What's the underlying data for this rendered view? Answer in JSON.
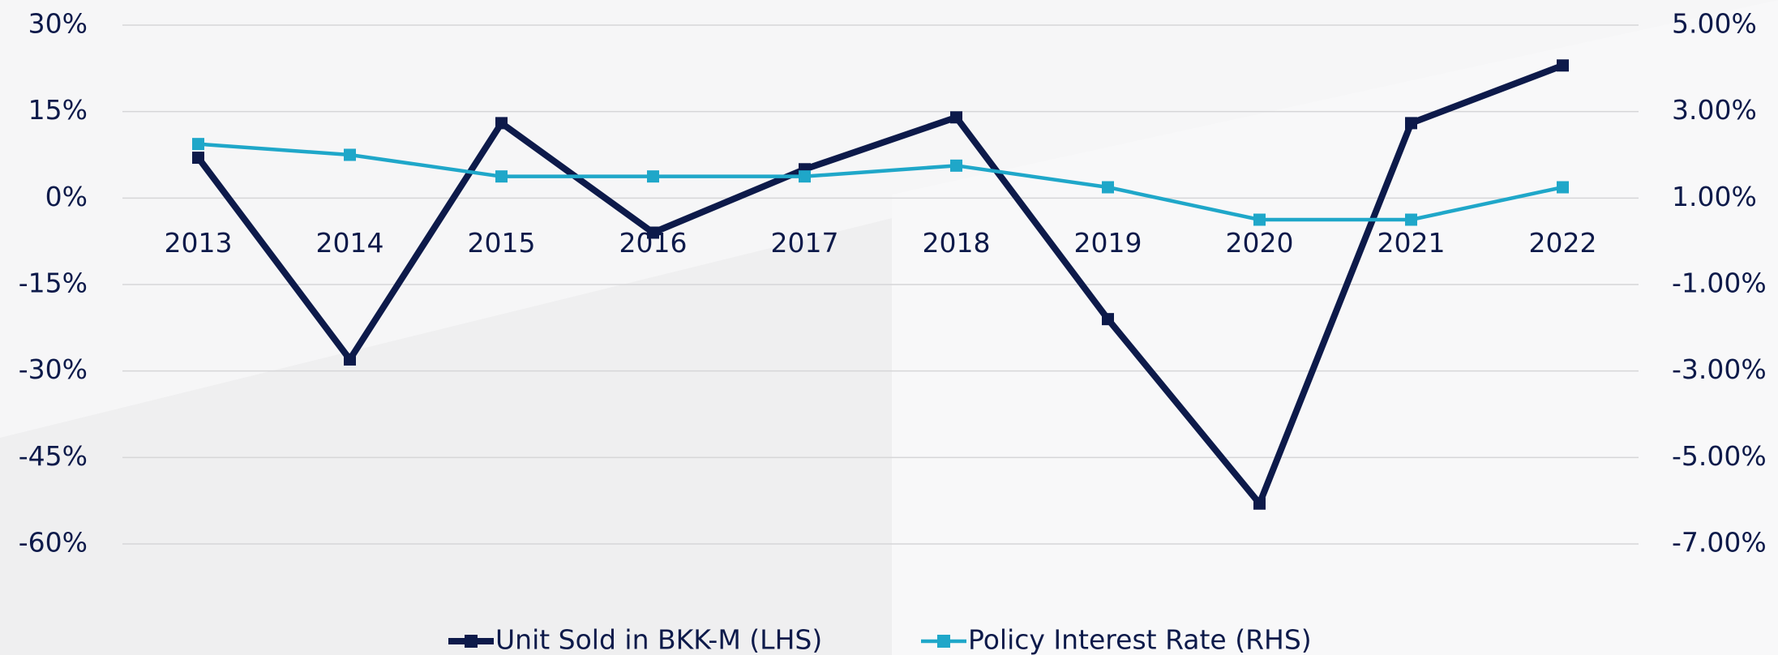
{
  "chart_data": {
    "type": "line",
    "categories": [
      "2013",
      "2014",
      "2015",
      "2016",
      "2017",
      "2018",
      "2019",
      "2020",
      "2021",
      "2022"
    ],
    "series": [
      {
        "name": "Unit Sold in BKK-M (LHS)",
        "color": "#0d1a4a",
        "values": [
          7,
          -28,
          13,
          -6,
          5,
          14,
          -21,
          -53,
          13,
          23
        ]
      },
      {
        "name": "Policy Interest Rate (RHS)",
        "color": "#1fa7c9",
        "axis": "y2",
        "values": [
          2.25,
          2.0,
          1.5,
          1.5,
          1.5,
          1.75,
          1.25,
          0.5,
          0.5,
          1.25
        ]
      }
    ],
    "ylim": [
      -60,
      30
    ],
    "yticks": [
      {
        "value": 30,
        "label": "30%"
      },
      {
        "value": 15,
        "label": "15%"
      },
      {
        "value": 0,
        "label": "0%"
      },
      {
        "value": -15,
        "label": "-15%"
      },
      {
        "value": -30,
        "label": "-30%"
      },
      {
        "value": -45,
        "label": "-45%"
      },
      {
        "value": -60,
        "label": "-60%"
      }
    ],
    "y2lim": [
      -7,
      5
    ],
    "y2ticks": [
      {
        "value": 5,
        "label": "5.00%"
      },
      {
        "value": 3,
        "label": "3.00%"
      },
      {
        "value": 1,
        "label": "1.00%"
      },
      {
        "value": -1,
        "label": "-1.00%"
      },
      {
        "value": -3,
        "label": "-3.00%"
      },
      {
        "value": -5,
        "label": "-5.00%"
      },
      {
        "value": -7,
        "label": "-7.00%"
      }
    ],
    "grid": true,
    "legend": "bottom"
  }
}
